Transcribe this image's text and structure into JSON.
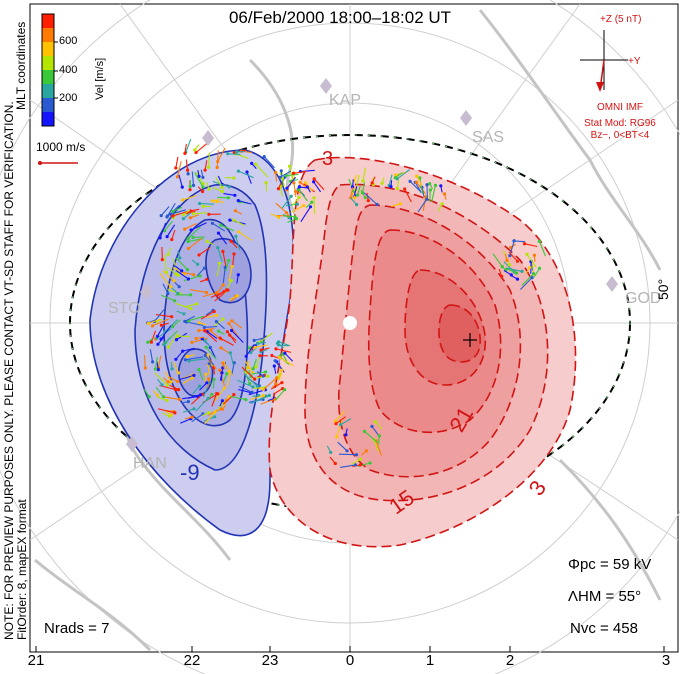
{
  "title": "06/Feb/2000 18:00–18:02 UT",
  "colorbar": {
    "label": "Vel [m/s]",
    "ticks": [
      "600",
      "400",
      "200"
    ],
    "colors": [
      "#ff1e00",
      "#ff7a00",
      "#ffc200",
      "#b4e600",
      "#38c838",
      "#2aa6a0",
      "#2a5ad2",
      "#1414ff"
    ]
  },
  "side_note": {
    "line1": "NOTE: FOR PREVIEW PURPOSES ONLY. PLEASE CONTACT VT-SD STAFF FOR VERIFICATION.",
    "line2": "FitOrder: 8, mapEX format",
    "line3": "MLT coordinates"
  },
  "reference_vector": {
    "label": "1000 m/s",
    "color": "#d21414"
  },
  "imf": {
    "axis_z": "+Z (5 nT)",
    "axis_y": "+Y",
    "source": "OMNI IMF",
    "model": "Stat Mod: RG96",
    "condition": "Bz−, 0<BT<4",
    "color": "#d21414"
  },
  "stations": [
    "KAP",
    "SAS",
    "STO",
    "HAN",
    "GOD"
  ],
  "latitude_label": "50°",
  "contour_labels": {
    "negative": [
      "-9"
    ],
    "positive": [
      "3",
      "21",
      "15",
      "3"
    ]
  },
  "stats": {
    "phi_pc": "Φpc = 59 kV",
    "lambda_hm": "ΛHM = 55°",
    "n_vc": "Nvc = 458",
    "n_rads": "Nrads = 7"
  },
  "mlt_ticks": [
    "21",
    "22",
    "23",
    "0",
    "1",
    "2",
    "3"
  ],
  "colors": {
    "negative_cell": "#2234b4",
    "positive_cell": "#d21414",
    "negative_fill": "#c8c8f0",
    "positive_fill": "#f4b4b4",
    "land": "#c4c4c4",
    "hm_boundary": "#000000"
  }
}
